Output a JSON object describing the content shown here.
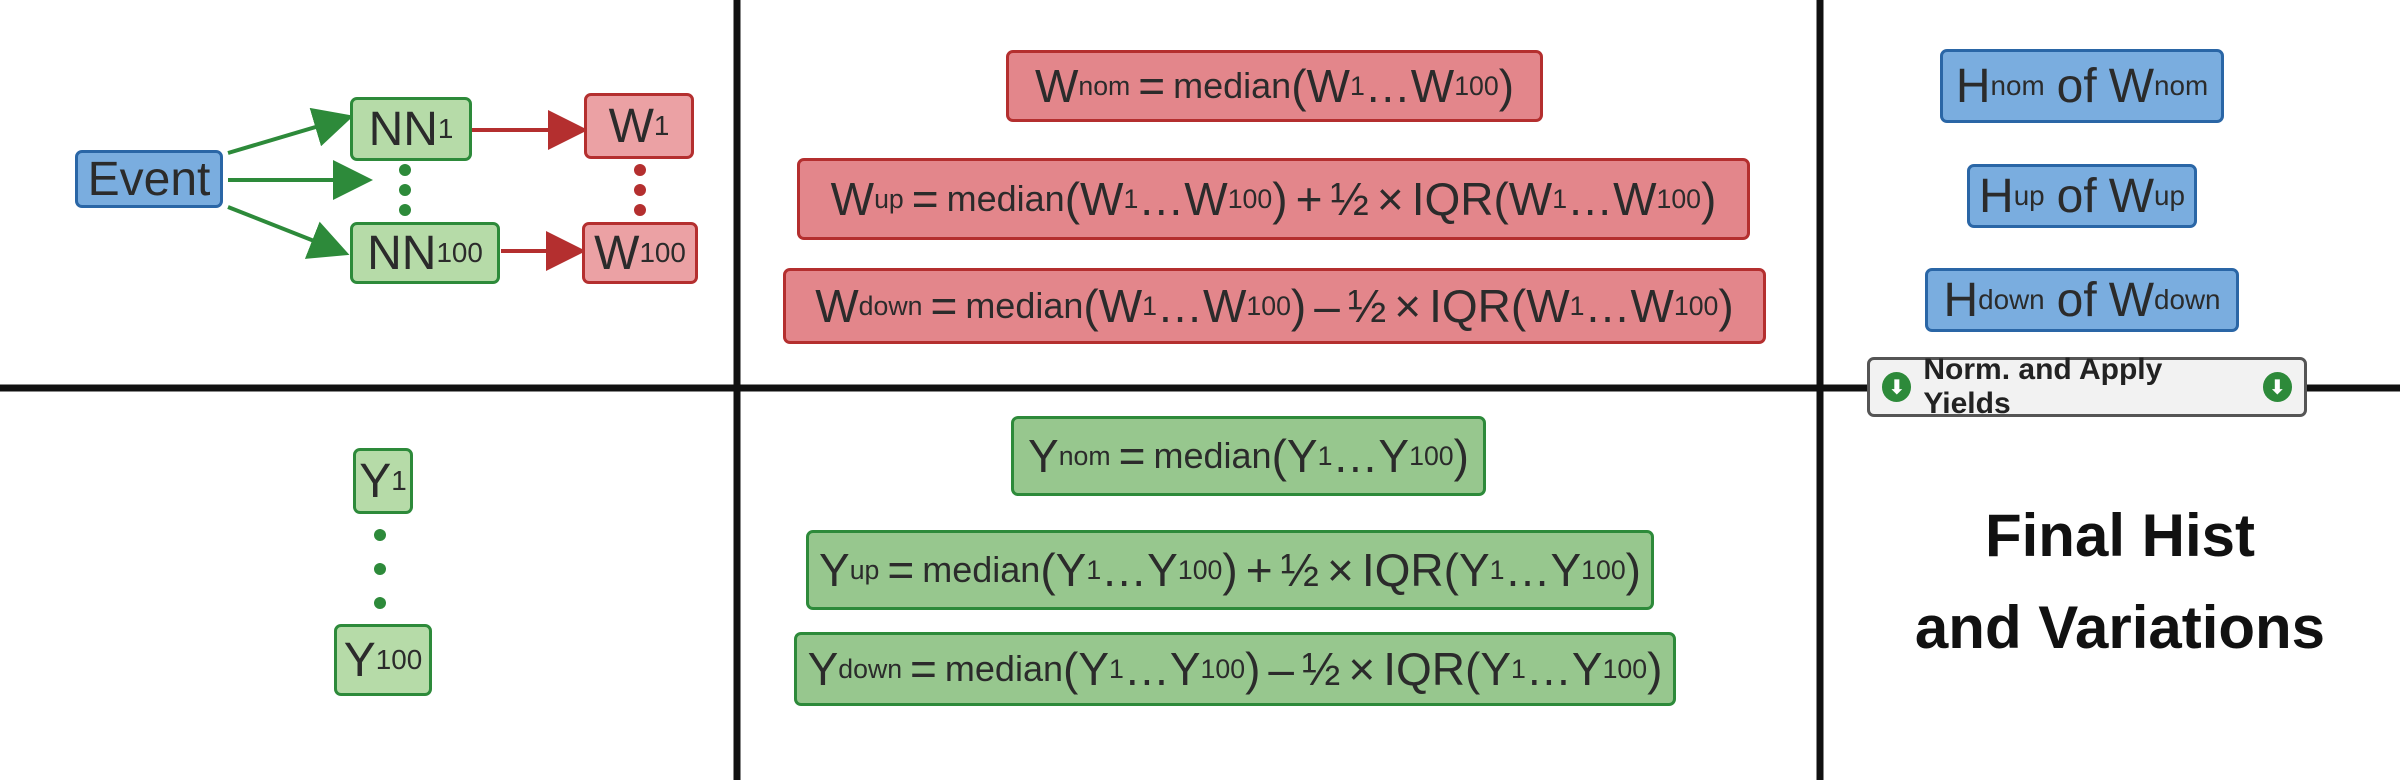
{
  "event_label": "Event",
  "nn_first": {
    "base": "NN",
    "sub": "1"
  },
  "nn_last": {
    "base": "NN",
    "sub": "100"
  },
  "w_first": {
    "base": "W",
    "sub": "1"
  },
  "w_last": {
    "base": "W",
    "sub": "100"
  },
  "y_first": {
    "base": "Y",
    "sub": "1"
  },
  "y_last": {
    "base": "Y",
    "sub": "100"
  },
  "w_formulas": {
    "nom_sub": "nom",
    "up_sub": "up",
    "down_sub": "down",
    "median_word": "median",
    "iqr_word": "IQR",
    "half": "½",
    "times": "×",
    "plus": "+",
    "minus": "–",
    "equals": "=",
    "ellipsis": "…",
    "letter": "W",
    "sub_first": "1",
    "sub_last": "100"
  },
  "y_formulas": {
    "nom_sub": "nom",
    "up_sub": "up",
    "down_sub": "down",
    "median_word": "median",
    "iqr_word": "IQR",
    "half": "½",
    "times": "×",
    "plus": "+",
    "minus": "–",
    "equals": "=",
    "ellipsis": "…",
    "letter": "Y",
    "sub_first": "1",
    "sub_last": "100"
  },
  "hist_labels": {
    "nom": {
      "h": "H",
      "sub": "nom",
      "of": "of",
      "w": "W"
    },
    "up": {
      "h": "H",
      "sub": "up",
      "of": "of",
      "w": "W"
    },
    "down": {
      "h": "H",
      "sub": "down",
      "of": "of",
      "w": "W"
    }
  },
  "norm_button": "Norm. and Apply Yields",
  "final_line1": "Final Hist",
  "final_line2": "and Variations",
  "colors": {
    "blue_fill": "#7aaddf",
    "blue_border": "#2a66a6",
    "green_fill": "#97c78e",
    "green_border": "#2d8a3a",
    "red_fill": "#e3868b",
    "red_border": "#b42f2f",
    "grid_line": "#111111"
  },
  "icons": {
    "norm_button_icon": "arrow-down-circle-icon"
  }
}
